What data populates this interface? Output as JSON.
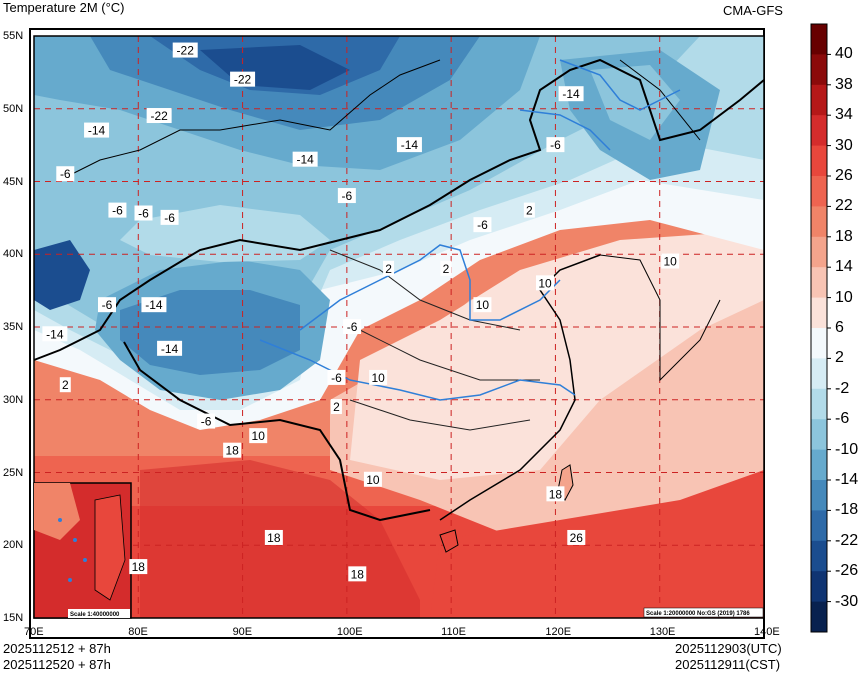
{
  "header": {
    "title": "Temperature  2M (°C)",
    "model": "CMA-GFS"
  },
  "footer": {
    "left_top": "2025112512 + 87h",
    "left_bottom": "2025112520 + 87h",
    "right_top": "2025112903(UTC)",
    "right_bottom": "2025112911(CST)"
  },
  "map": {
    "lat_labels": [
      "55N",
      "50N",
      "45N",
      "40N",
      "35N",
      "30N",
      "25N",
      "20N",
      "15N"
    ],
    "lon_labels": [
      "70E",
      "80E",
      "90E",
      "100E",
      "110E",
      "120E",
      "130E",
      "140E"
    ],
    "scale_note": "Scale 1:20000000 No:GS (2019) 1786",
    "inset_scale": "Scale 1:40000000",
    "contour_labels": [
      {
        "text": "-22",
        "lon": 84.5,
        "lat": 54
      },
      {
        "text": "-22",
        "lon": 90,
        "lat": 52
      },
      {
        "text": "-22",
        "lon": 82,
        "lat": 49.5
      },
      {
        "text": "-14",
        "lon": 76,
        "lat": 48.5
      },
      {
        "text": "-14",
        "lon": 96,
        "lat": 46.5
      },
      {
        "text": "-14",
        "lon": 106,
        "lat": 47.5
      },
      {
        "text": "-14",
        "lon": 121.5,
        "lat": 51
      },
      {
        "text": "-6",
        "lon": 120,
        "lat": 47.5
      },
      {
        "text": "-6",
        "lon": 73,
        "lat": 45.5
      },
      {
        "text": "-6",
        "lon": 78,
        "lat": 43
      },
      {
        "text": "-6",
        "lon": 80.5,
        "lat": 42.8
      },
      {
        "text": "-6",
        "lon": 83,
        "lat": 42.5
      },
      {
        "text": "-6",
        "lon": 100,
        "lat": 44
      },
      {
        "text": "-6",
        "lon": 113,
        "lat": 42
      },
      {
        "text": "2",
        "lon": 117.5,
        "lat": 43
      },
      {
        "text": "2",
        "lon": 104,
        "lat": 39
      },
      {
        "text": "2",
        "lon": 109.5,
        "lat": 39
      },
      {
        "text": "10",
        "lon": 113,
        "lat": 36.5
      },
      {
        "text": "10",
        "lon": 131,
        "lat": 39.5
      },
      {
        "text": "10",
        "lon": 119,
        "lat": 38
      },
      {
        "text": "-6",
        "lon": 77,
        "lat": 36.5
      },
      {
        "text": "-14",
        "lon": 81.5,
        "lat": 36.5
      },
      {
        "text": "-14",
        "lon": 72,
        "lat": 34.5
      },
      {
        "text": "-14",
        "lon": 83,
        "lat": 33.5
      },
      {
        "text": "-6",
        "lon": 100.5,
        "lat": 35
      },
      {
        "text": "-6",
        "lon": 99,
        "lat": 31.5
      },
      {
        "text": "10",
        "lon": 103,
        "lat": 31.5
      },
      {
        "text": "2",
        "lon": 99,
        "lat": 29.5
      },
      {
        "text": "2",
        "lon": 73,
        "lat": 31
      },
      {
        "text": "-6",
        "lon": 86.5,
        "lat": 28.5
      },
      {
        "text": "10",
        "lon": 91.5,
        "lat": 27.5
      },
      {
        "text": "18",
        "lon": 89,
        "lat": 26.5
      },
      {
        "text": "18",
        "lon": 120,
        "lat": 23.5
      },
      {
        "text": "10",
        "lon": 102.5,
        "lat": 24.5
      },
      {
        "text": "18",
        "lon": 93,
        "lat": 20.5
      },
      {
        "text": "18",
        "lon": 80,
        "lat": 18.5
      },
      {
        "text": "18",
        "lon": 101,
        "lat": 18
      },
      {
        "text": "26",
        "lon": 122,
        "lat": 20.5
      }
    ]
  },
  "colorbar": {
    "labels": [
      "40",
      "38",
      "34",
      "30",
      "26",
      "22",
      "18",
      "14",
      "10",
      "6",
      "2",
      "-2",
      "-6",
      "-10",
      "-14",
      "-18",
      "-22",
      "-26",
      "-30"
    ],
    "colors": [
      "#670000",
      "#8b0a0a",
      "#b51818",
      "#d42c2c",
      "#e8473c",
      "#ee6450",
      "#f08468",
      "#f4a48c",
      "#f8c4b4",
      "#fbe2da",
      "#f4f9fc",
      "#d6ecf4",
      "#b2dbe9",
      "#8cc5dc",
      "#66aacd",
      "#4589bb",
      "#2e6aa8",
      "#1b4d8f",
      "#0f3472",
      "#08214f"
    ]
  }
}
